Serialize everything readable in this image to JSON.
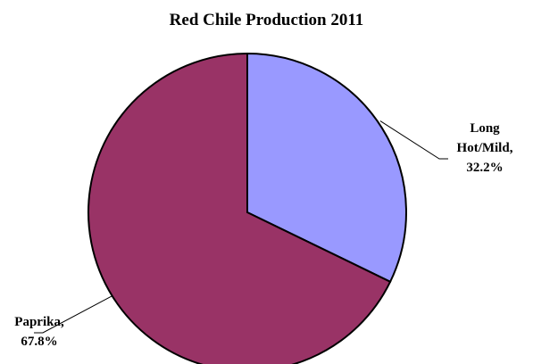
{
  "chart_data": {
    "type": "pie",
    "title": "Red Chile Production 2011",
    "slices": [
      {
        "name": "Long Hot/Mild",
        "value": 32.2,
        "label_lines": [
          "Long",
          "Hot/Mild,",
          "32.2%"
        ],
        "color": "#9999FF"
      },
      {
        "name": "Paprika",
        "value": 67.8,
        "label_lines": [
          "Paprika,",
          "67.8%"
        ],
        "color": "#993366"
      }
    ],
    "start_angle": "12 o'clock",
    "direction": "clockwise",
    "legend": "none",
    "outline_color": "#000000"
  }
}
